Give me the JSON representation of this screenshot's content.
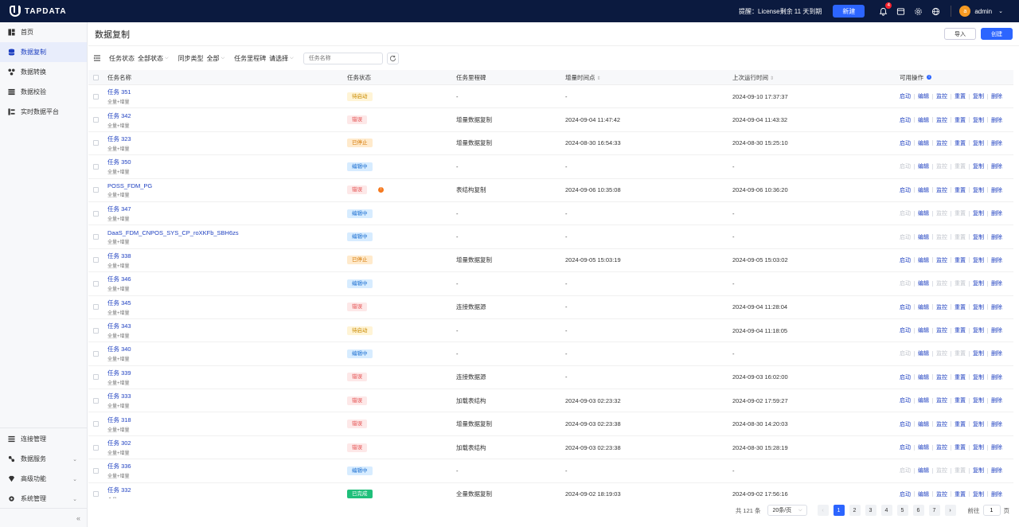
{
  "brand": {
    "name": "TAPDATA"
  },
  "topbar": {
    "license_notice": "提醒：License剩余 11 天到期",
    "new_button": "新建",
    "notification_count": "4",
    "username": "admin",
    "avatar_letter": "a"
  },
  "sidebar": {
    "top_items": [
      {
        "label": "首页",
        "icon": "dashboard-icon"
      },
      {
        "label": "数据复制",
        "icon": "database-icon",
        "active": true
      },
      {
        "label": "数据转换",
        "icon": "transform-icon"
      },
      {
        "label": "数据校验",
        "icon": "verify-icon"
      },
      {
        "label": "实时数据平台",
        "icon": "platform-icon"
      }
    ],
    "bottom_items": [
      {
        "label": "连接管理",
        "icon": "connection-icon"
      },
      {
        "label": "数据服务",
        "icon": "service-icon",
        "expandable": true
      },
      {
        "label": "高级功能",
        "icon": "advanced-icon",
        "expandable": true
      },
      {
        "label": "系统管理",
        "icon": "settings-icon",
        "expandable": true
      }
    ],
    "collapse_symbol": "«"
  },
  "page": {
    "title": "数据复制",
    "import_button": "导入",
    "create_button": "创建"
  },
  "filters": {
    "status_label": "任务状态",
    "status_value": "全部状态",
    "sync_label": "同步类型",
    "sync_value": "全部",
    "milestone_label": "任务里程碑",
    "milestone_value": "请选择",
    "search_placeholder": "任务名称"
  },
  "table": {
    "headers": {
      "name": "任务名称",
      "status": "任务状态",
      "milestone": "任务里程碑",
      "incremental": "增量时间点",
      "last_run": "上次运行时间",
      "ops": "可用操作"
    },
    "op_labels": [
      "启动",
      "编辑",
      "监控",
      "重置",
      "复制",
      "删除"
    ],
    "rows": [
      {
        "name": "任务 351",
        "sub": "全量+增量",
        "status": "待启动",
        "st": "wait",
        "milestone": "-",
        "inc": "-",
        "last": "2024-09-10 17:37:37",
        "ops_enabled": [
          true,
          true,
          true,
          true,
          true,
          true
        ]
      },
      {
        "name": "任务 342",
        "sub": "全量+增量",
        "status": "错误",
        "st": "err",
        "milestone": "增量数据复制",
        "inc": "2024-09-04 11:47:42",
        "last": "2024-09-04 11:43:32",
        "ops_enabled": [
          true,
          true,
          true,
          true,
          true,
          true
        ]
      },
      {
        "name": "任务 323",
        "sub": "全量+增量",
        "status": "已停止",
        "st": "stop",
        "milestone": "增量数据复制",
        "inc": "2024-08-30 16:54:33",
        "last": "2024-08-30 15:25:10",
        "ops_enabled": [
          true,
          true,
          true,
          true,
          true,
          true
        ]
      },
      {
        "name": "任务 350",
        "sub": "全量+增量",
        "status": "编辑中",
        "st": "edit",
        "milestone": "-",
        "inc": "-",
        "last": "-",
        "ops_enabled": [
          false,
          true,
          false,
          false,
          true,
          true
        ]
      },
      {
        "name": "POSS_FDM_PG",
        "sub": "全量+增量",
        "status": "错误",
        "st": "err",
        "warn": true,
        "milestone": "表结构复制",
        "inc": "2024-09-06 10:35:08",
        "last": "2024-09-06 10:36:20",
        "ops_enabled": [
          true,
          true,
          true,
          true,
          true,
          true
        ]
      },
      {
        "name": "任务 347",
        "sub": "全量+增量",
        "status": "编辑中",
        "st": "edit",
        "milestone": "-",
        "inc": "-",
        "last": "-",
        "ops_enabled": [
          false,
          true,
          false,
          false,
          true,
          true
        ]
      },
      {
        "name": "DaaS_FDM_CNPOS_SYS_CP_roXKFb_SBH6zs",
        "sub": "全量+增量",
        "status": "编辑中",
        "st": "edit",
        "milestone": "-",
        "inc": "-",
        "last": "-",
        "ops_enabled": [
          false,
          true,
          false,
          false,
          true,
          true
        ]
      },
      {
        "name": "任务 338",
        "sub": "全量+增量",
        "status": "已停止",
        "st": "stop",
        "milestone": "增量数据复制",
        "inc": "2024-09-05 15:03:19",
        "last": "2024-09-05 15:03:02",
        "ops_enabled": [
          true,
          true,
          true,
          true,
          true,
          true
        ]
      },
      {
        "name": "任务 346",
        "sub": "全量+增量",
        "status": "编辑中",
        "st": "edit",
        "milestone": "-",
        "inc": "-",
        "last": "-",
        "ops_enabled": [
          false,
          true,
          false,
          false,
          true,
          true
        ]
      },
      {
        "name": "任务 345",
        "sub": "全量+增量",
        "status": "错误",
        "st": "err",
        "milestone": "连接数据源",
        "inc": "-",
        "last": "2024-09-04 11:28:04",
        "ops_enabled": [
          true,
          true,
          true,
          true,
          true,
          true
        ]
      },
      {
        "name": "任务 343",
        "sub": "全量+增量",
        "status": "待启动",
        "st": "wait",
        "milestone": "-",
        "inc": "-",
        "last": "2024-09-04 11:18:05",
        "ops_enabled": [
          true,
          true,
          true,
          true,
          true,
          true
        ]
      },
      {
        "name": "任务 340",
        "sub": "全量+增量",
        "status": "编辑中",
        "st": "edit",
        "milestone": "-",
        "inc": "-",
        "last": "-",
        "ops_enabled": [
          false,
          true,
          false,
          false,
          true,
          true
        ]
      },
      {
        "name": "任务 339",
        "sub": "全量+增量",
        "status": "错误",
        "st": "err",
        "milestone": "连接数据源",
        "inc": "-",
        "last": "2024-09-03 16:02:00",
        "ops_enabled": [
          true,
          true,
          true,
          true,
          true,
          true
        ]
      },
      {
        "name": "任务 333",
        "sub": "全量+增量",
        "status": "错误",
        "st": "err",
        "milestone": "加载表结构",
        "inc": "2024-09-03 02:23:32",
        "last": "2024-09-02 17:59:27",
        "ops_enabled": [
          true,
          true,
          true,
          true,
          true,
          true
        ]
      },
      {
        "name": "任务 318",
        "sub": "全量+增量",
        "status": "错误",
        "st": "err",
        "milestone": "增量数据复制",
        "inc": "2024-09-03 02:23:38",
        "last": "2024-08-30 14:20:03",
        "ops_enabled": [
          true,
          true,
          true,
          true,
          true,
          true
        ]
      },
      {
        "name": "任务 302",
        "sub": "全量+增量",
        "status": "错误",
        "st": "err",
        "milestone": "加载表结构",
        "inc": "2024-09-03 02:23:38",
        "last": "2024-08-30 15:28:19",
        "ops_enabled": [
          true,
          true,
          true,
          true,
          true,
          true
        ]
      },
      {
        "name": "任务 336",
        "sub": "全量+增量",
        "status": "编辑中",
        "st": "edit",
        "milestone": "-",
        "inc": "-",
        "last": "-",
        "ops_enabled": [
          false,
          true,
          false,
          false,
          true,
          true
        ]
      },
      {
        "name": "任务 332",
        "sub": "全量",
        "status": "已完成",
        "st": "done",
        "milestone": "全量数据复制",
        "inc": "2024-09-02 18:19:03",
        "last": "2024-09-02 17:56:16",
        "ops_enabled": [
          true,
          true,
          true,
          true,
          true,
          true
        ]
      }
    ]
  },
  "pagination": {
    "total": "共 121 条",
    "page_size": "20条/页",
    "prev": "‹",
    "pages": [
      "1",
      "2",
      "3",
      "4",
      "5",
      "6",
      "7"
    ],
    "current": "1",
    "next": "›",
    "goto_label": "前往",
    "goto_value": "1",
    "goto_suffix": "页"
  }
}
